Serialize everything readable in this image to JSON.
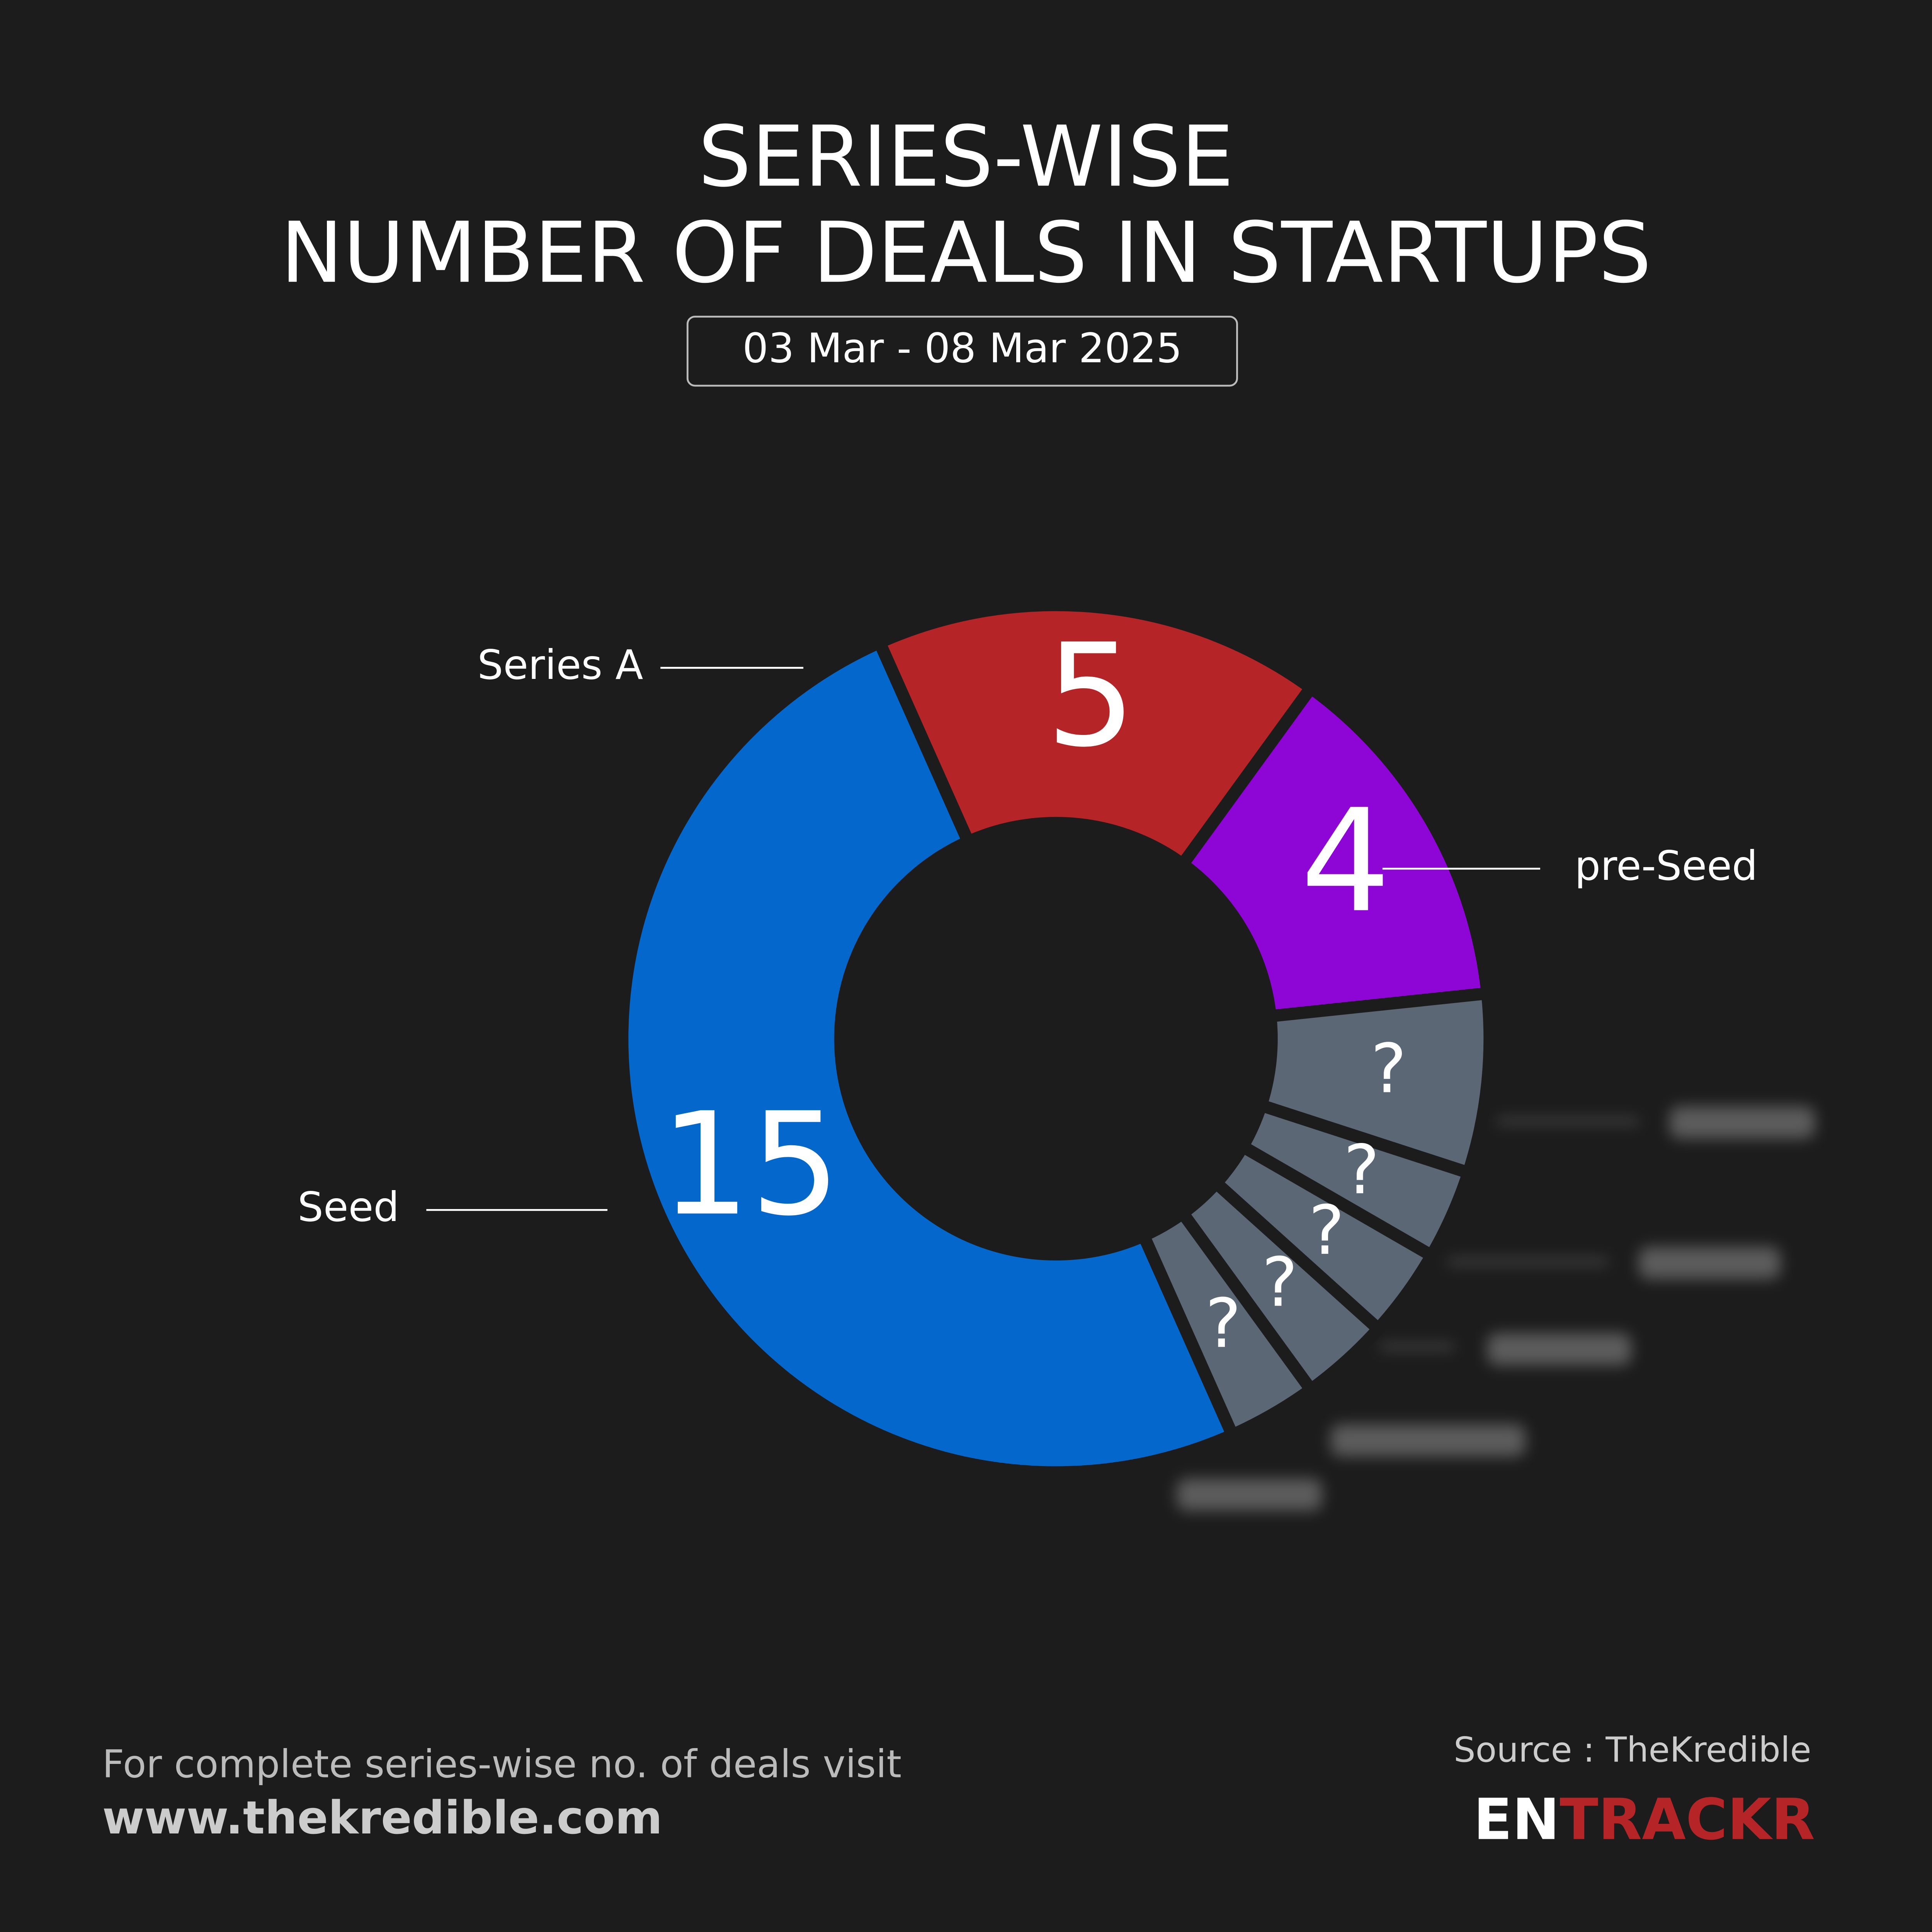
{
  "chart_data": {
    "type": "donut",
    "title": [
      "SERIES-WISE",
      "NUMBER OF DEALS IN STARTUPS"
    ],
    "subtitle": "03 Mar - 08 Mar 2025",
    "categories": [
      "Series A",
      "pre-Seed",
      null,
      null,
      null,
      null,
      null,
      "Seed"
    ],
    "values": [
      5,
      4,
      2,
      1,
      1,
      1,
      1,
      15
    ],
    "value_labels": [
      "5",
      "4",
      "?",
      "?",
      "?",
      "?",
      "?",
      "15"
    ],
    "colors": [
      "#b52426",
      "#8e06d6",
      "#5c6775",
      "#5c6775",
      "#5c6775",
      "#5c6775",
      "#5c6775",
      "#0367cc"
    ]
  },
  "footer": {
    "note": "For complete series-wise no. of deals visit",
    "url": "www.thekredible.com",
    "source": "Source : TheKredible",
    "brand": [
      "EN",
      "TRACKR"
    ]
  }
}
